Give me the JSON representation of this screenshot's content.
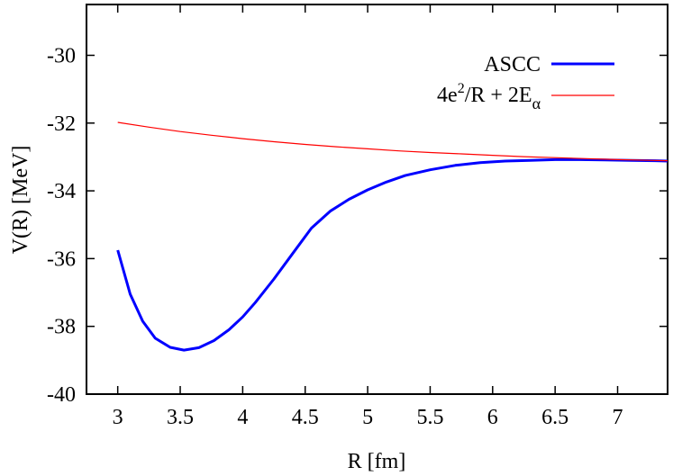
{
  "chart_data": {
    "type": "line",
    "xlabel": "R [fm]",
    "ylabel": "V(R) [MeV]",
    "xlim": [
      2.75,
      7.4
    ],
    "ylim": [
      -40,
      -28.5
    ],
    "x_ticks": [
      3,
      3.5,
      4,
      4.5,
      5,
      5.5,
      6,
      6.5,
      7
    ],
    "x_tick_labels": [
      "3",
      "3.5",
      "4",
      "4.5",
      "5",
      "5.5",
      "6",
      "6.5",
      "7"
    ],
    "y_ticks": [
      -40,
      -38,
      -36,
      -34,
      -32,
      -30
    ],
    "y_tick_labels": [
      "-40",
      "-38",
      "-36",
      "-34",
      "-32",
      "-30"
    ],
    "grid": false,
    "legend_position": "top-right",
    "series": [
      {
        "name": "ASCC",
        "color": "#0000ff",
        "x": [
          3.0,
          3.1,
          3.2,
          3.3,
          3.42,
          3.53,
          3.65,
          3.77,
          3.89,
          4.0,
          4.1,
          4.25,
          4.4,
          4.55,
          4.7,
          4.85,
          5.0,
          5.15,
          5.3,
          5.5,
          5.7,
          5.9,
          6.1,
          6.3,
          6.5,
          6.7,
          6.9,
          7.1,
          7.3,
          7.4
        ],
        "y": [
          -35.75,
          -37.05,
          -37.85,
          -38.35,
          -38.62,
          -38.7,
          -38.63,
          -38.42,
          -38.1,
          -37.72,
          -37.3,
          -36.6,
          -35.85,
          -35.1,
          -34.6,
          -34.25,
          -33.97,
          -33.74,
          -33.55,
          -33.38,
          -33.25,
          -33.17,
          -33.12,
          -33.1,
          -33.08,
          -33.08,
          -33.09,
          -33.1,
          -33.11,
          -33.12
        ]
      },
      {
        "name": "4e²/R + 2E_α",
        "color": "#ff0000",
        "x": [
          3.0,
          3.25,
          3.5,
          3.75,
          4.0,
          4.25,
          4.5,
          4.75,
          5.0,
          5.25,
          5.5,
          5.75,
          6.0,
          6.25,
          6.5,
          6.75,
          7.0,
          7.25,
          7.4
        ],
        "y": [
          -31.98,
          -32.12,
          -32.25,
          -32.36,
          -32.46,
          -32.55,
          -32.63,
          -32.7,
          -32.76,
          -32.82,
          -32.87,
          -32.91,
          -32.95,
          -32.99,
          -33.02,
          -33.05,
          -33.08,
          -33.1,
          -33.11
        ]
      }
    ],
    "legend": [
      {
        "label": "ASCC",
        "color": "#0000ff"
      },
      {
        "label_base": "4e",
        "label_sup": "2",
        "label_mid": "/R + 2E",
        "label_sub": "α",
        "color": "#ff0000"
      }
    ]
  }
}
